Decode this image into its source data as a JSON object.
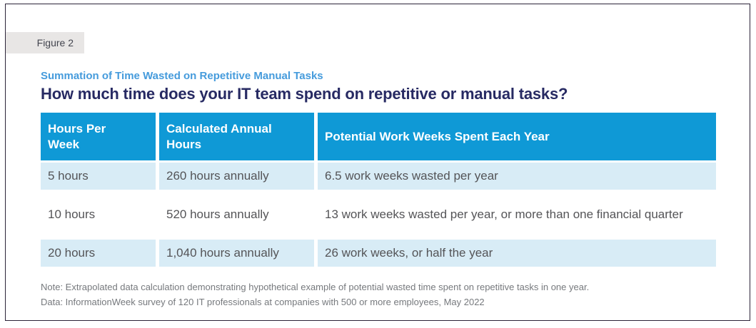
{
  "figure_label": "Figure 2",
  "chart_data": {
    "type": "table",
    "subtitle": "Summation of Time Wasted on Repetitive Manual Tasks",
    "title": "How much time does your IT team spend on repetitive or manual tasks?",
    "columns": [
      "Hours Per Week",
      "Calculated Annual Hours",
      "Potential Work Weeks Spent Each Year"
    ],
    "rows": [
      [
        "5 hours",
        "260 hours annually",
        "6.5 work weeks wasted per year"
      ],
      [
        "10 hours",
        "520 hours annually",
        "13 work weeks wasted per year, or more than one financial quarter"
      ],
      [
        "20 hours",
        "1,040 hours annually",
        "26 work weeks, or half the year"
      ]
    ],
    "hours_per_week_values": [
      5,
      10,
      20
    ],
    "annual_hours_values": [
      260,
      520,
      1040
    ],
    "work_weeks_values": [
      6.5,
      13,
      26
    ],
    "notes": [
      "Note: Extrapolated data calculation demonstrating hypothetical example of potential wasted time spent on repetitive tasks in one year.",
      "Data: InformationWeek survey of 120 IT professionals at companies with 500 or more employees, May 2022"
    ]
  },
  "colors": {
    "header_bg": "#0f99d6",
    "row_stripe_bg": "#d8ecf6",
    "title_text": "#272a63",
    "subtitle_text": "#459bdc",
    "body_text": "#545457",
    "note_text": "#76797d",
    "figure_label_bg": "#e8e6e5",
    "figure_label_text": "#43454f",
    "frame_border": "#2b2338"
  }
}
